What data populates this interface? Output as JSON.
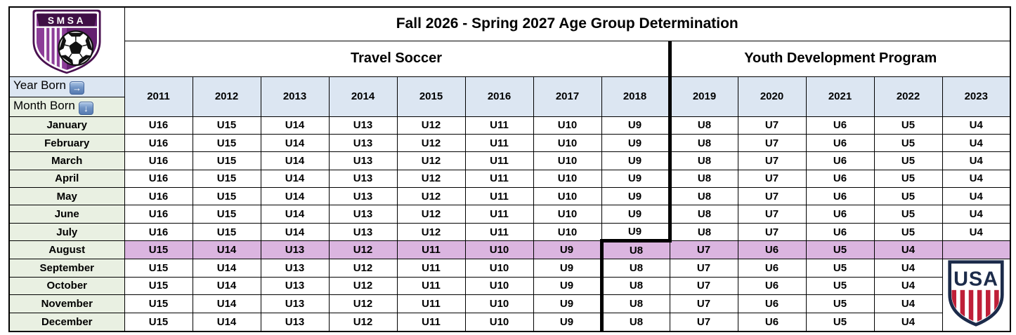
{
  "title": "Fall 2026 - Spring 2027 Age Group Determination",
  "sections": {
    "travel": {
      "label": "Travel Soccer",
      "years_span": 8
    },
    "ydp": {
      "label": "Youth Development Program",
      "years_span": 5
    }
  },
  "corner": {
    "year_born": "Year Born",
    "month_born": "Month Born",
    "year_arrow_icon": "→",
    "month_arrow_icon": "↓"
  },
  "years": [
    "2011",
    "2012",
    "2013",
    "2014",
    "2015",
    "2016",
    "2017",
    "2018",
    "2019",
    "2020",
    "2021",
    "2022",
    "2023"
  ],
  "rows": [
    {
      "month": "January",
      "values": [
        "U16",
        "U15",
        "U14",
        "U13",
        "U12",
        "U11",
        "U10",
        "U9",
        "U8",
        "U7",
        "U6",
        "U5",
        "U4"
      ]
    },
    {
      "month": "February",
      "values": [
        "U16",
        "U15",
        "U14",
        "U13",
        "U12",
        "U11",
        "U10",
        "U9",
        "U8",
        "U7",
        "U6",
        "U5",
        "U4"
      ]
    },
    {
      "month": "March",
      "values": [
        "U16",
        "U15",
        "U14",
        "U13",
        "U12",
        "U11",
        "U10",
        "U9",
        "U8",
        "U7",
        "U6",
        "U5",
        "U4"
      ]
    },
    {
      "month": "April",
      "values": [
        "U16",
        "U15",
        "U14",
        "U13",
        "U12",
        "U11",
        "U10",
        "U9",
        "U8",
        "U7",
        "U6",
        "U5",
        "U4"
      ]
    },
    {
      "month": "May",
      "values": [
        "U16",
        "U15",
        "U14",
        "U13",
        "U12",
        "U11",
        "U10",
        "U9",
        "U8",
        "U7",
        "U6",
        "U5",
        "U4"
      ]
    },
    {
      "month": "June",
      "values": [
        "U16",
        "U15",
        "U14",
        "U13",
        "U12",
        "U11",
        "U10",
        "U9",
        "U8",
        "U7",
        "U6",
        "U5",
        "U4"
      ]
    },
    {
      "month": "July",
      "values": [
        "U16",
        "U15",
        "U14",
        "U13",
        "U12",
        "U11",
        "U10",
        "U9",
        "U8",
        "U7",
        "U6",
        "U5",
        "U4"
      ]
    },
    {
      "month": "August",
      "values": [
        "U15",
        "U14",
        "U13",
        "U12",
        "U11",
        "U10",
        "U9",
        "U8",
        "U7",
        "U6",
        "U5",
        "U4",
        ""
      ]
    },
    {
      "month": "September",
      "values": [
        "U15",
        "U14",
        "U13",
        "U12",
        "U11",
        "U10",
        "U9",
        "U8",
        "U7",
        "U6",
        "U5",
        "U4",
        ""
      ]
    },
    {
      "month": "October",
      "values": [
        "U15",
        "U14",
        "U13",
        "U12",
        "U11",
        "U10",
        "U9",
        "U8",
        "U7",
        "U6",
        "U5",
        "U4",
        ""
      ]
    },
    {
      "month": "November",
      "values": [
        "U15",
        "U14",
        "U13",
        "U12",
        "U11",
        "U10",
        "U9",
        "U8",
        "U7",
        "U6",
        "U5",
        "U4",
        ""
      ]
    },
    {
      "month": "December",
      "values": [
        "U15",
        "U14",
        "U13",
        "U12",
        "U11",
        "U10",
        "U9",
        "U8",
        "U7",
        "U6",
        "U5",
        "U4",
        ""
      ]
    }
  ],
  "highlight": {
    "month": "August"
  },
  "divider": {
    "jan_jul_before_year": "2019",
    "aug_dec_before_year": "2018"
  },
  "logos": {
    "smsa": {
      "text": "SMSA"
    },
    "usa": {
      "text": "USA"
    }
  },
  "colors": {
    "year_header_bg": "#DCE6F2",
    "month_bg": "#E9F0E2",
    "highlight_bg": "#DBB5E0",
    "grid_border": "#000000",
    "smsa_purple": "#7C2C87",
    "smsa_dark_purple": "#4A1150",
    "usa_navy": "#1C2B4A",
    "usa_red": "#BF1F38"
  }
}
